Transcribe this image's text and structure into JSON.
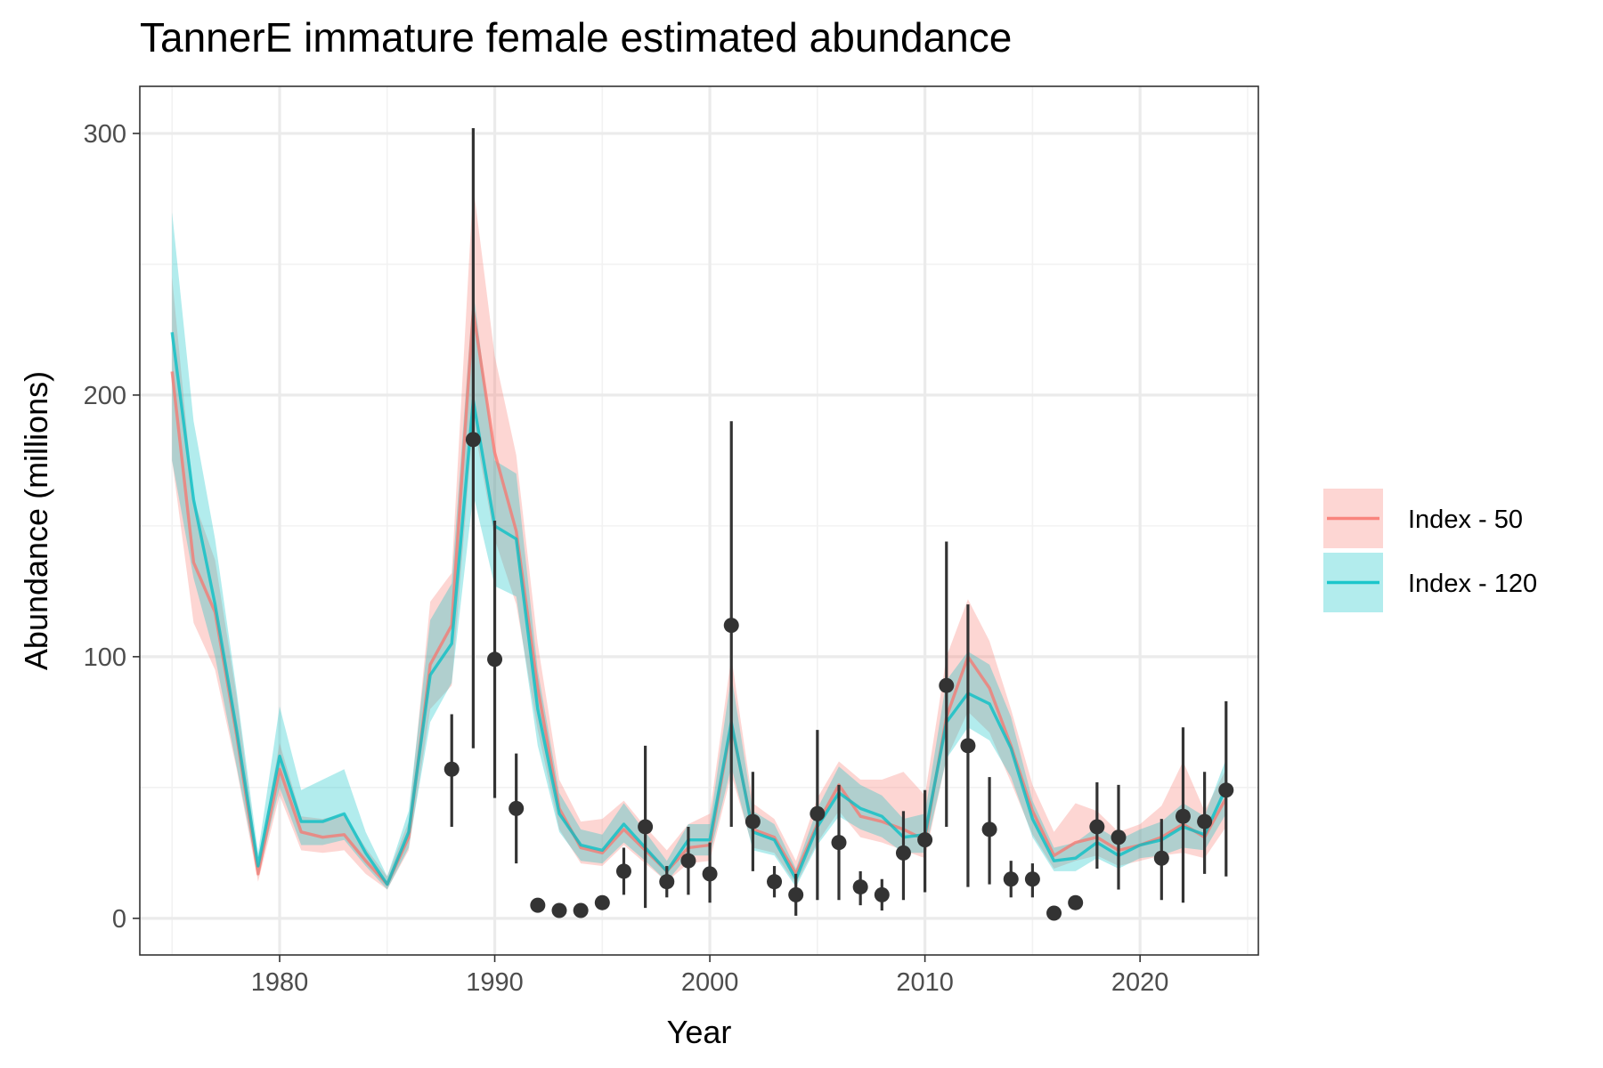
{
  "chart_data": {
    "type": "line",
    "title": "TannerE immature female estimated abundance",
    "xlabel": "Year",
    "ylabel": "Abundance (millions)",
    "xlim": [
      1973.5,
      2025.5
    ],
    "ylim": [
      -14,
      318
    ],
    "x_ticks": [
      1980,
      1990,
      2000,
      2010,
      2020
    ],
    "y_ticks": [
      0,
      100,
      200,
      300
    ],
    "grid": true,
    "legend_position": "right",
    "years": [
      1975,
      1976,
      1977,
      1978,
      1979,
      1980,
      1981,
      1982,
      1983,
      1984,
      1985,
      1986,
      1987,
      1988,
      1989,
      1990,
      1991,
      1992,
      1993,
      1994,
      1995,
      1996,
      1997,
      1998,
      1999,
      2000,
      2001,
      2002,
      2003,
      2004,
      2005,
      2006,
      2007,
      2008,
      2009,
      2010,
      2011,
      2012,
      2013,
      2014,
      2015,
      2016,
      2017,
      2018,
      2019,
      2020,
      2021,
      2022,
      2023,
      2024
    ],
    "series": [
      {
        "name": "Index - 50",
        "color": "#F8766D",
        "values": [
          209,
          136,
          117,
          70,
          17,
          57,
          33,
          31,
          32,
          22,
          13,
          31,
          97,
          112,
          232,
          178,
          148,
          88,
          42,
          27,
          25,
          34,
          26,
          18,
          27,
          28,
          74,
          34,
          31,
          17,
          36,
          51,
          39,
          37,
          34,
          30,
          77,
          100,
          88,
          66,
          41,
          24,
          29,
          31,
          26,
          28,
          31,
          36,
          31,
          46
        ],
        "lower": [
          175,
          113,
          95,
          57,
          14,
          47,
          26,
          25,
          26,
          17,
          11,
          26,
          80,
          89,
          190,
          145,
          120,
          72,
          34,
          21,
          20,
          28,
          21,
          14,
          21,
          22,
          55,
          27,
          25,
          13,
          29,
          41,
          31,
          29,
          26,
          23,
          61,
          79,
          71,
          52,
          32,
          19,
          22,
          24,
          20,
          22,
          24,
          25,
          23,
          35
        ],
        "upper": [
          245,
          160,
          137,
          85,
          21,
          67,
          39,
          38,
          40,
          27,
          16,
          37,
          121,
          132,
          280,
          215,
          177,
          105,
          53,
          37,
          38,
          45,
          35,
          26,
          36,
          40,
          100,
          44,
          38,
          22,
          46,
          60,
          53,
          53,
          56,
          47,
          100,
          122,
          106,
          80,
          51,
          33,
          44,
          41,
          33,
          36,
          43,
          60,
          41,
          57
        ]
      },
      {
        "name": "Index - 120",
        "color": "#00BFC4",
        "values": [
          224,
          160,
          120,
          72,
          20,
          62,
          37,
          37,
          40,
          25,
          13,
          33,
          93,
          105,
          198,
          150,
          145,
          80,
          40,
          28,
          26,
          36,
          27,
          18,
          30,
          30,
          75,
          33,
          30,
          15,
          35,
          48,
          42,
          39,
          31,
          32,
          75,
          86,
          82,
          65,
          38,
          22,
          23,
          29,
          24,
          28,
          30,
          35,
          32,
          50
        ],
        "lower": [
          175,
          130,
          100,
          58,
          16,
          50,
          28,
          28,
          30,
          20,
          11,
          27,
          75,
          90,
          162,
          127,
          123,
          66,
          33,
          22,
          21,
          29,
          22,
          14,
          24,
          24,
          58,
          26,
          24,
          12,
          28,
          39,
          34,
          31,
          25,
          25,
          61,
          73,
          68,
          54,
          31,
          18,
          18,
          23,
          19,
          23,
          24,
          27,
          26,
          40
        ],
        "upper": [
          270,
          190,
          145,
          87,
          25,
          81,
          49,
          53,
          57,
          33,
          16,
          41,
          114,
          128,
          240,
          175,
          170,
          95,
          48,
          34,
          32,
          44,
          33,
          22,
          36,
          36,
          93,
          41,
          36,
          19,
          42,
          58,
          51,
          47,
          38,
          40,
          91,
          102,
          97,
          77,
          45,
          27,
          29,
          35,
          30,
          34,
          37,
          44,
          39,
          61
        ]
      }
    ],
    "observed": {
      "years": [
        1988,
        1989,
        1990,
        1991,
        1992,
        1993,
        1994,
        1995,
        1996,
        1997,
        1998,
        1999,
        2000,
        2001,
        2002,
        2003,
        2004,
        2005,
        2006,
        2007,
        2008,
        2009,
        2010,
        2011,
        2012,
        2013,
        2014,
        2015,
        2016,
        2017,
        2018,
        2019,
        2021,
        2022,
        2023,
        2024
      ],
      "values": [
        57,
        183,
        99,
        42,
        5,
        3,
        3,
        6,
        18,
        35,
        14,
        22,
        17,
        112,
        37,
        14,
        9,
        40,
        29,
        12,
        9,
        25,
        30,
        89,
        66,
        34,
        15,
        15,
        2,
        6,
        35,
        31,
        23,
        39,
        37,
        49
      ],
      "lower": [
        35,
        65,
        46,
        21,
        5,
        3,
        3,
        6,
        9,
        4,
        8,
        9,
        6,
        35,
        18,
        8,
        1,
        7,
        7,
        5,
        3,
        7,
        10,
        35,
        12,
        13,
        8,
        8,
        2,
        6,
        19,
        11,
        7,
        6,
        17,
        16
      ],
      "upper": [
        78,
        302,
        152,
        63,
        5,
        3,
        3,
        6,
        27,
        66,
        20,
        35,
        29,
        190,
        56,
        20,
        17,
        72,
        51,
        18,
        15,
        41,
        49,
        144,
        120,
        54,
        22,
        21,
        2,
        6,
        52,
        51,
        38,
        73,
        56,
        83
      ],
      "color": "#333333"
    }
  }
}
